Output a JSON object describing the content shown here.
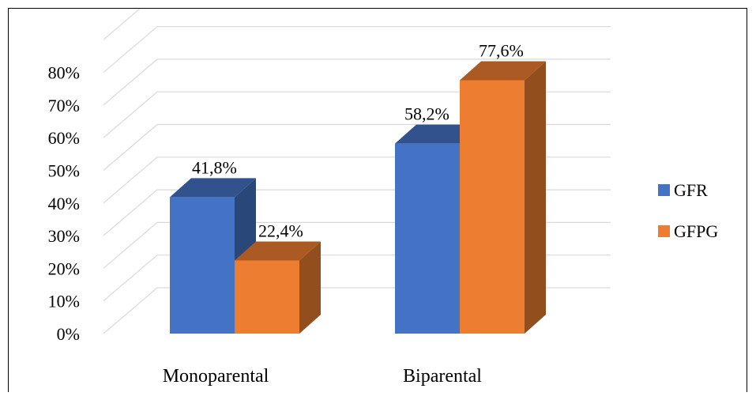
{
  "chart_data": {
    "type": "bar",
    "style": "3d-clustered-column",
    "categories": [
      "Monoparental",
      "Biparental"
    ],
    "series": [
      {
        "name": "GFR",
        "color": "#4472C4",
        "values": [
          41.8,
          58.2
        ],
        "labels": [
          "41,8%",
          "58,2%"
        ]
      },
      {
        "name": "GFPG",
        "color": "#ED7D31",
        "values": [
          22.4,
          77.6
        ],
        "labels": [
          "22,4%",
          "77,6%"
        ]
      }
    ],
    "y_ticks": [
      {
        "value": 0,
        "label": "0%"
      },
      {
        "value": 10,
        "label": "10%"
      },
      {
        "value": 20,
        "label": "20%"
      },
      {
        "value": 30,
        "label": "30%"
      },
      {
        "value": 40,
        "label": "40%"
      },
      {
        "value": 50,
        "label": "50%"
      },
      {
        "value": 60,
        "label": "60%"
      },
      {
        "value": 70,
        "label": "70%"
      },
      {
        "value": 80,
        "label": "80%"
      },
      {
        "value": 90,
        "label": ""
      }
    ],
    "ylim": [
      0,
      90
    ],
    "title": "",
    "xlabel": "",
    "ylabel": "",
    "grid": true,
    "legend_position": "right"
  }
}
